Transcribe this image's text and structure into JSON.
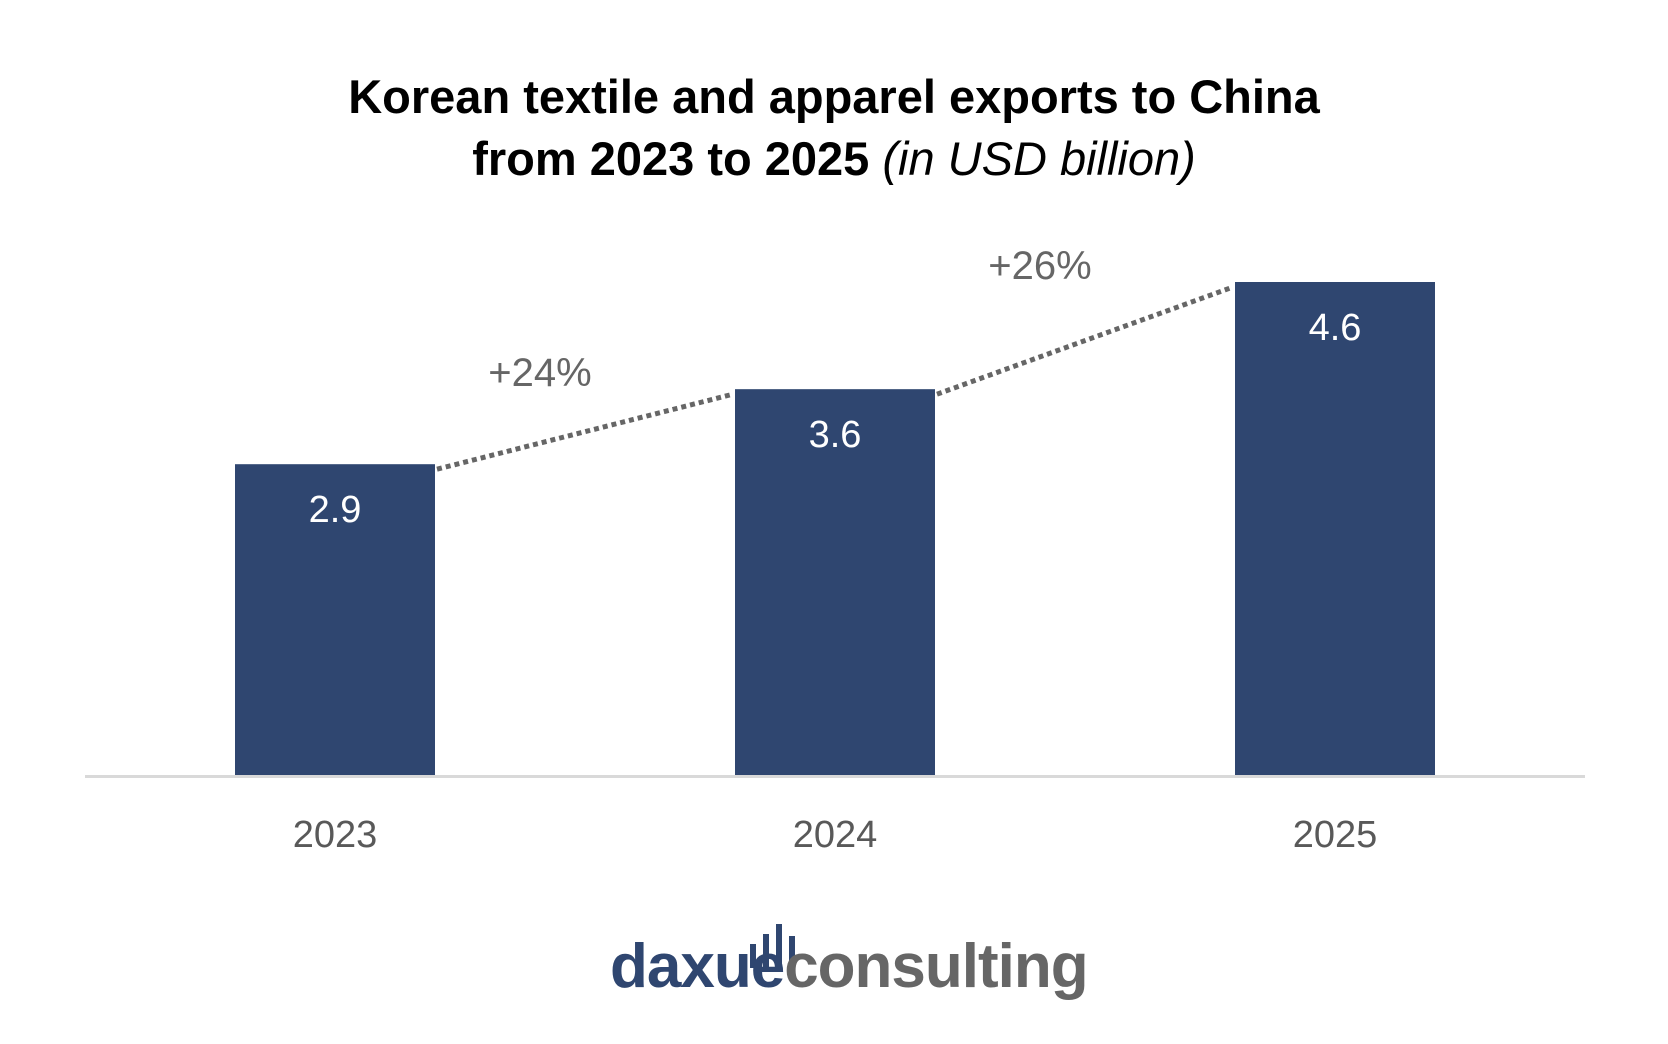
{
  "chart_data": {
    "type": "bar",
    "title": "Korean textile and apparel exports to China from 2023 to 2025",
    "title_line1": "Korean textile and apparel exports to China",
    "title_line2": "from 2023 to 2025",
    "unit_note": "(in USD billion)",
    "categories": [
      "2023",
      "2024",
      "2025"
    ],
    "values": [
      2.9,
      3.6,
      4.6
    ],
    "value_labels": [
      "2.9",
      "3.6",
      "4.6"
    ],
    "growth_annotations": [
      {
        "from": "2023",
        "to": "2024",
        "label": "+24%"
      },
      {
        "from": "2024",
        "to": "2025",
        "label": "+26%"
      }
    ],
    "xlabel": "",
    "ylabel": "",
    "ylim": [
      0,
      4.6
    ],
    "grid": false,
    "legend": "none",
    "bar_color": "#2f4670",
    "connector_color": "#666666",
    "axis_color": "#d9d9d9",
    "tick_label_color": "#595959",
    "value_label_color": "#ffffff"
  },
  "brand": {
    "part1": "daxue",
    "part2": "consulting",
    "part1_color": "#2f4670",
    "part2_color": "#666666",
    "icon": "bar-chart-logo-icon"
  }
}
